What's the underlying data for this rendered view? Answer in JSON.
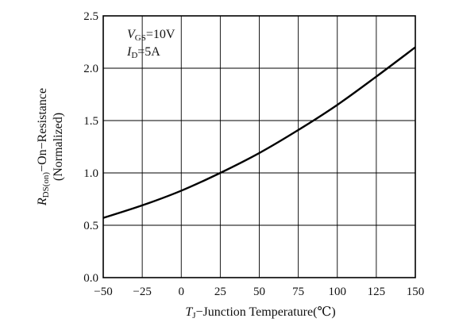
{
  "chart_data": {
    "type": "line",
    "x": [
      -50,
      -25,
      0,
      25,
      50,
      75,
      100,
      125,
      150
    ],
    "series": [
      {
        "values": [
          0.57,
          0.69,
          0.83,
          1.0,
          1.19,
          1.41,
          1.65,
          1.92,
          2.2
        ]
      }
    ],
    "xlim": [
      -50,
      150
    ],
    "ylim": [
      0,
      2.5
    ],
    "x_ticks": [
      "−50",
      "−25",
      "0",
      "25",
      "50",
      "75",
      "100",
      "125",
      "150"
    ],
    "y_ticks": [
      "0.0",
      "0.5",
      "1.0",
      "1.5",
      "2.0",
      "2.5"
    ],
    "grid": true,
    "xlabel": {
      "main": "T",
      "sub": "J",
      "rest": "−Junction Temperature(℃)"
    },
    "ylabel": {
      "line1_main": "R",
      "line1_sub": "DS(on)",
      "line1_rest": "−On−Resistance",
      "line2": "(Normalized)"
    },
    "annotations": [
      {
        "main": "V",
        "sub": "GS",
        "rest": "=10V"
      },
      {
        "main": "I",
        "sub": "D",
        "rest": "=5A"
      }
    ]
  }
}
